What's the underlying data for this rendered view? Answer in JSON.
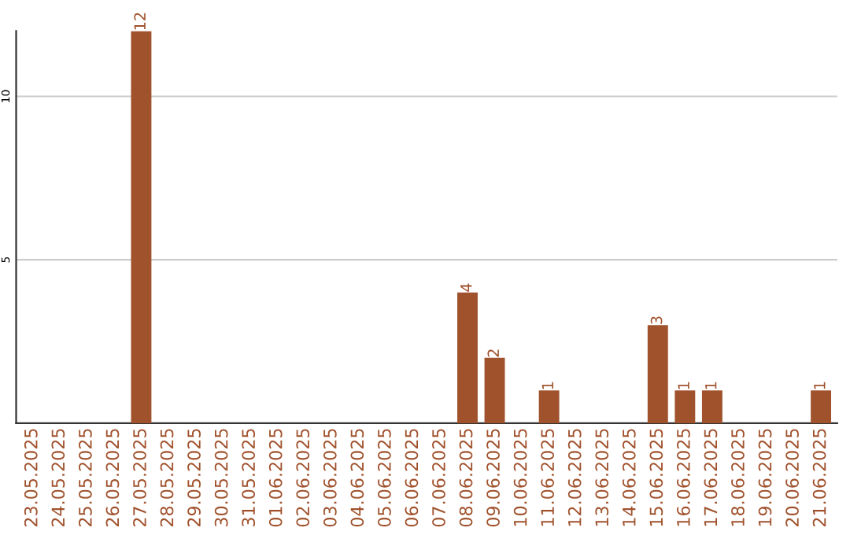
{
  "chart_data": {
    "type": "bar",
    "categories": [
      "23.05.2025",
      "24.05.2025",
      "25.05.2025",
      "26.05.2025",
      "27.05.2025",
      "28.05.2025",
      "29.05.2025",
      "30.05.2025",
      "31.05.2025",
      "01.06.2025",
      "02.06.2025",
      "03.06.2025",
      "04.06.2025",
      "05.06.2025",
      "06.06.2025",
      "07.06.2025",
      "08.06.2025",
      "09.06.2025",
      "10.06.2025",
      "11.06.2025",
      "12.06.2025",
      "13.06.2025",
      "14.06.2025",
      "15.06.2025",
      "16.06.2025",
      "17.06.2025",
      "18.06.2025",
      "19.06.2025",
      "20.06.2025",
      "21.06.2025"
    ],
    "values": [
      0,
      0,
      0,
      0,
      12,
      0,
      0,
      0,
      0,
      0,
      0,
      0,
      0,
      0,
      0,
      0,
      4,
      2,
      0,
      1,
      0,
      0,
      0,
      3,
      1,
      1,
      0,
      0,
      0,
      1
    ],
    "value_labels": [
      null,
      null,
      null,
      null,
      "12",
      null,
      null,
      null,
      null,
      null,
      null,
      null,
      null,
      null,
      null,
      null,
      "4",
      "2",
      null,
      "1",
      null,
      null,
      null,
      "3",
      "1",
      "1",
      null,
      null,
      null,
      "1"
    ],
    "color": "#a0522d",
    "ylim": [
      0,
      12
    ],
    "yticks": [
      5,
      10
    ],
    "grid": "y"
  }
}
